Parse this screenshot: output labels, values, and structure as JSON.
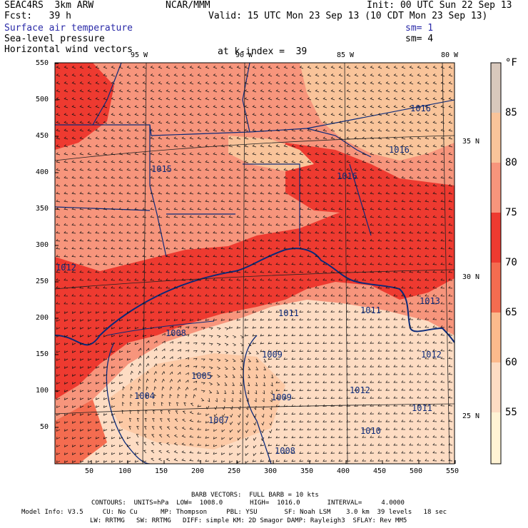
{
  "header": {
    "title_left": "SEAC4RS  3km ARW",
    "fcst": "Fcst:   39 h",
    "center": "NCAR/MMM",
    "init": "Init: 00 UTC Sun 22 Sep 13",
    "valid": "Valid: 15 UTC Mon 23 Sep 13 (10 CDT Mon 23 Sep 13)",
    "field1": "Surface air temperature",
    "field2": "Sea-level pressure",
    "field3": "Horizontal wind vectors",
    "sm1": "sm= 1",
    "sm2": "sm= 4",
    "level": "at k-index =  39"
  },
  "axes": {
    "lon_labels": [
      "95 W",
      "90 W",
      "85 W",
      "80 W"
    ],
    "lat_labels": [
      "35 N",
      "30 N",
      "25 N"
    ],
    "x_ticks": [
      "50",
      "100",
      "150",
      "200",
      "250",
      "300",
      "350",
      "400",
      "450",
      "500",
      "550"
    ],
    "y_ticks": [
      "550",
      "500",
      "450",
      "400",
      "350",
      "300",
      "250",
      "200",
      "150",
      "100",
      "50"
    ]
  },
  "colorbar": {
    "unit": "°F",
    "labels": [
      "85",
      "80",
      "75",
      "70",
      "65",
      "60",
      "55"
    ],
    "colors": [
      "#d8c8bc",
      "#f9c49a",
      "#f7957c",
      "#ee3a30",
      "#f46c50",
      "#fcba8c",
      "#fddcc3",
      "#fff3d4"
    ]
  },
  "pressure_labels": [
    {
      "text": "1016",
      "kind": ""
    },
    {
      "text": "1016",
      "kind": ""
    },
    {
      "text": "1016",
      "kind": ""
    },
    {
      "text": "1015",
      "kind": ""
    },
    {
      "text": "1012",
      "kind": ""
    },
    {
      "text": "1011",
      "kind": ""
    },
    {
      "text": "1011",
      "kind": ""
    },
    {
      "text": "1013",
      "kind": ""
    },
    {
      "text": "1008",
      "kind": ""
    },
    {
      "text": "1009",
      "kind": ""
    },
    {
      "text": "1005",
      "kind": ""
    },
    {
      "text": "1004",
      "kind": ""
    },
    {
      "text": "1009",
      "kind": ""
    },
    {
      "text": "1012",
      "kind": ""
    },
    {
      "text": "1012",
      "kind": ""
    },
    {
      "text": "1011",
      "kind": ""
    },
    {
      "text": "1007",
      "kind": ""
    },
    {
      "text": "1010",
      "kind": ""
    },
    {
      "text": "1008",
      "kind": ""
    }
  ],
  "footer": {
    "barb": "BARB VECTORS:  FULL BARB = 10 kts",
    "contours": "CONTOURS:  UNITS=hPa  LOW=  1008.0       HIGH=  1016.0       INTERVAL=     4.0000",
    "model1": "Model Info: V3.5     CU: No Cu      MP: Thompson     PBL: YSU       SF: Noah LSM    3.0 km  39 levels   18 sec",
    "model2": "LW: RRTMG   SW: RRTMG   DIFF: simple KM: 2D Smagor DAMP: Rayleigh3  SFLAY: Rev MM5"
  }
}
